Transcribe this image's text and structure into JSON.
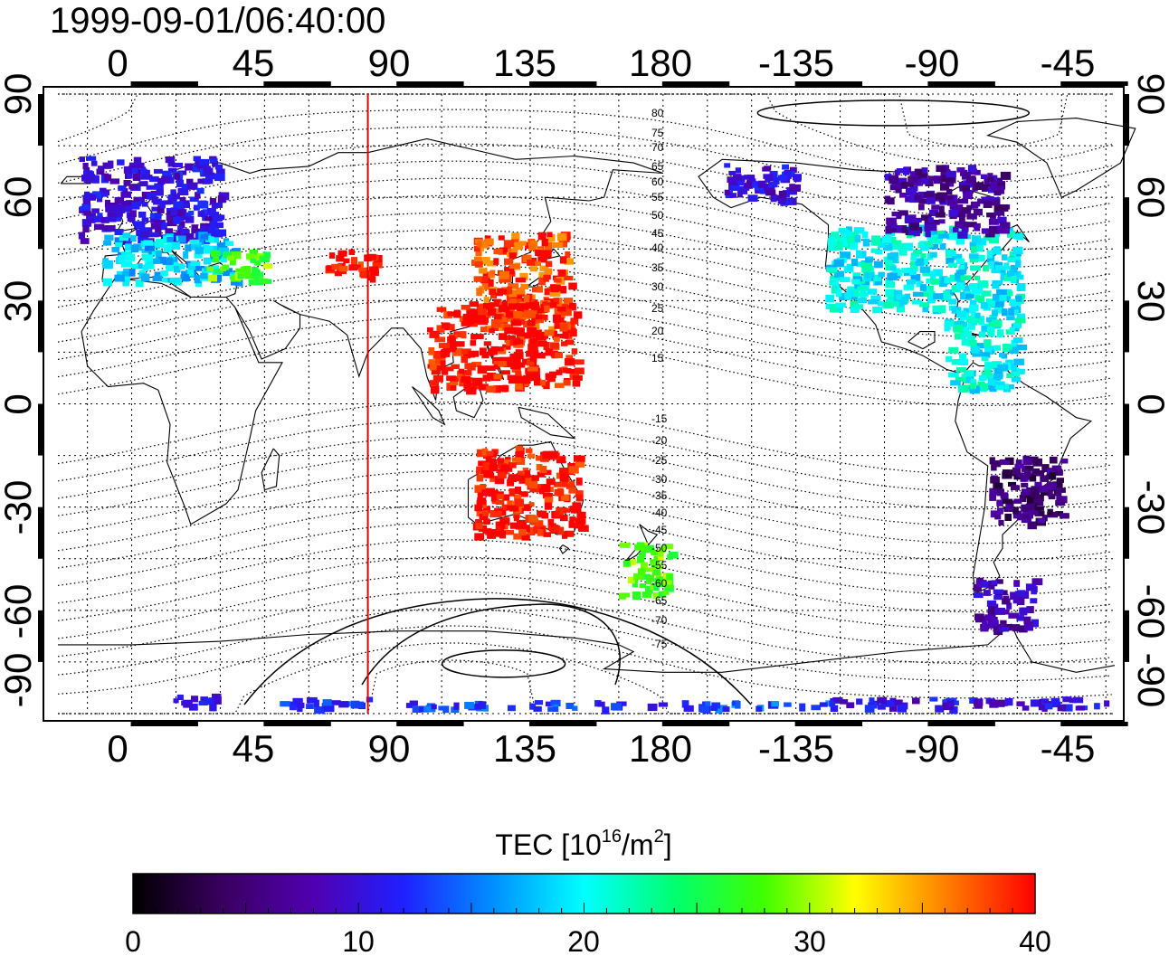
{
  "timestamp": "1999-09-01/06:40:00",
  "lon_ticks": [
    "0",
    "45",
    "90",
    "135",
    "180",
    "-135",
    "-90",
    "-45"
  ],
  "lat_ticks": [
    "90",
    "60",
    "30",
    "0",
    "-30",
    "-60",
    "-90"
  ],
  "terminator_lon": 80,
  "contour_labels_north": [
    "80",
    "75",
    "70",
    "65",
    "60",
    "55",
    "50",
    "45",
    "40",
    "35",
    "30",
    "25",
    "20",
    "15"
  ],
  "contour_labels_south": [
    "-15",
    "-20",
    "-25",
    "-30",
    "-35",
    "-40",
    "-45",
    "-50",
    "-55",
    "-60",
    "-65",
    "-70",
    "-75"
  ],
  "colorbar": {
    "title_prefix": "TEC  [10",
    "title_sup1": "16",
    "title_mid": "/m",
    "title_sup2": "2",
    "title_suffix": "]",
    "min": 0,
    "max": 40,
    "ticks": [
      "0",
      "10",
      "20",
      "30",
      "40"
    ],
    "palette": [
      "#000000",
      "#3a0060",
      "#5000b0",
      "#2020ff",
      "#0090ff",
      "#00ffff",
      "#00ff70",
      "#40ff00",
      "#ffff00",
      "#ff8000",
      "#ff0000"
    ]
  },
  "chart_data": {
    "type": "heatmap",
    "title": "1999-09-01/06:40:00",
    "xlabel": "",
    "ylabel": "",
    "xlim": [
      -25,
      333
    ],
    "ylim": [
      -90,
      90
    ],
    "colorbar_label": "TEC [10^16/m^2]",
    "regions": [
      {
        "lon": [
          -18,
          30
        ],
        "lat": [
          48,
          72
        ],
        "tec": 10
      },
      {
        "lon": [
          -10,
          35
        ],
        "lat": [
          36,
          50
        ],
        "tec": 18
      },
      {
        "lon": [
          25,
          45
        ],
        "lat": [
          36,
          45
        ],
        "tec": 28
      },
      {
        "lon": [
          65,
          82
        ],
        "lat": [
          37,
          45
        ],
        "tec": 40
      },
      {
        "lon": [
          115,
          148
        ],
        "lat": [
          22,
          50
        ],
        "tec": 38
      },
      {
        "lon": [
          100,
          150
        ],
        "lat": [
          5,
          30
        ],
        "tec": 40
      },
      {
        "lon": [
          115,
          152
        ],
        "lat": [
          -38,
          -12
        ],
        "tec": 40
      },
      {
        "lon": [
          165,
          182
        ],
        "lat": [
          -55,
          -40
        ],
        "tec": 28
      },
      {
        "lon": [
          200,
          225
        ],
        "lat": [
          58,
          70
        ],
        "tec": 10
      },
      {
        "lon": [
          235,
          300
        ],
        "lat": [
          28,
          52
        ],
        "tec": 20
      },
      {
        "lon": [
          255,
          295
        ],
        "lat": [
          50,
          70
        ],
        "tec": 7
      },
      {
        "lon": [
          275,
          300
        ],
        "lat": [
          5,
          28
        ],
        "tec": 20
      },
      {
        "lon": [
          290,
          315
        ],
        "lat": [
          -35,
          -15
        ],
        "tec": 5
      },
      {
        "lon": [
          285,
          305
        ],
        "lat": [
          -65,
          -50
        ],
        "tec": 8
      },
      {
        "lon": [
          14,
          30
        ],
        "lat": [
          -88,
          -84
        ],
        "tec": 11
      },
      {
        "lon": [
          50,
          80
        ],
        "lat": [
          -88,
          -85
        ],
        "tec": 13
      },
      {
        "lon": [
          90,
          180
        ],
        "lat": [
          -88,
          -86
        ],
        "tec": 13
      },
      {
        "lon": [
          180,
          235
        ],
        "lat": [
          -88,
          -86
        ],
        "tec": 14
      },
      {
        "lon": [
          235,
          330
        ],
        "lat": [
          -88,
          -85
        ],
        "tec": 10
      }
    ]
  }
}
